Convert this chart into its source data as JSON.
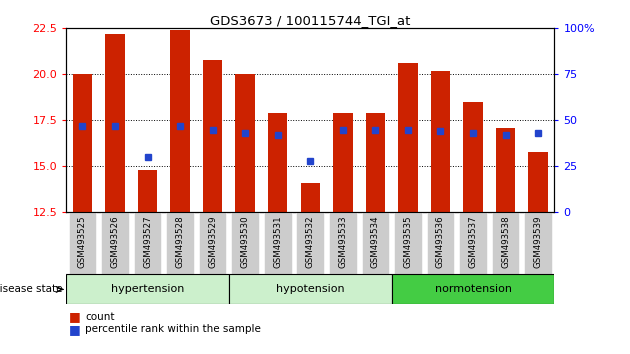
{
  "title": "GDS3673 / 100115744_TGI_at",
  "samples": [
    "GSM493525",
    "GSM493526",
    "GSM493527",
    "GSM493528",
    "GSM493529",
    "GSM493530",
    "GSM493531",
    "GSM493532",
    "GSM493533",
    "GSM493534",
    "GSM493535",
    "GSM493536",
    "GSM493537",
    "GSM493538",
    "GSM493539"
  ],
  "count_values": [
    20.0,
    22.2,
    14.8,
    22.4,
    20.8,
    20.0,
    17.9,
    14.1,
    17.9,
    17.9,
    20.6,
    20.2,
    18.5,
    17.1,
    15.8
  ],
  "percentile_values": [
    47,
    47,
    30,
    47,
    45,
    43,
    42,
    28,
    45,
    45,
    45,
    44,
    43,
    42,
    43
  ],
  "ylim_left": [
    12.5,
    22.5
  ],
  "ylim_right": [
    0,
    100
  ],
  "yticks_left": [
    12.5,
    15.0,
    17.5,
    20.0,
    22.5
  ],
  "yticks_right": [
    0,
    25,
    50,
    75,
    100
  ],
  "groups": [
    {
      "label": "hypertension",
      "start": 0,
      "end": 5,
      "color": "#ccf0cc"
    },
    {
      "label": "hypotension",
      "start": 5,
      "end": 10,
      "color": "#ccf0cc"
    },
    {
      "label": "normotension",
      "start": 10,
      "end": 15,
      "color": "#44cc44"
    }
  ],
  "bar_color": "#cc2200",
  "dot_color": "#2244cc",
  "bar_width": 0.6,
  "background_color": "#ffffff",
  "tick_label_bg": "#cccccc"
}
